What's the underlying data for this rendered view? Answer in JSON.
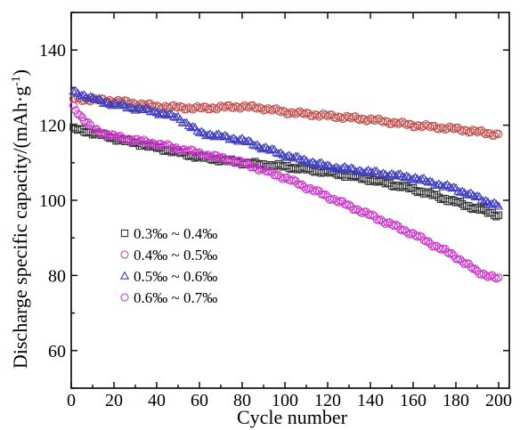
{
  "chart_data": {
    "type": "scatter",
    "title": "",
    "xlabel": "Cycle number",
    "ylabel_main": "Discharge specific capacity/(mAh·g",
    "ylabel_sup": "-1",
    "ylabel_close": ")",
    "xlim": [
      0,
      205
    ],
    "ylim": [
      50,
      150
    ],
    "xticks": [
      0,
      20,
      40,
      60,
      80,
      100,
      120,
      140,
      160,
      180,
      200
    ],
    "yticks": [
      60,
      80,
      100,
      120,
      140
    ],
    "grid": false,
    "legend_position": "left-middle",
    "series": [
      {
        "name": "0.3‰ ~ 0.4‰",
        "marker": "square",
        "color": "#333333",
        "anchors": [
          [
            1,
            119
          ],
          [
            10,
            118
          ],
          [
            20,
            116.5
          ],
          [
            40,
            114
          ],
          [
            60,
            111.5
          ],
          [
            80,
            110
          ],
          [
            100,
            109
          ],
          [
            120,
            107.5
          ],
          [
            140,
            105.5
          ],
          [
            160,
            103
          ],
          [
            180,
            99.5
          ],
          [
            200,
            96
          ]
        ]
      },
      {
        "name": "0.4‰ ~ 0.5‰",
        "marker": "circle",
        "color": "#c0504d",
        "anchors": [
          [
            1,
            127
          ],
          [
            20,
            126.5
          ],
          [
            40,
            125
          ],
          [
            60,
            124.5
          ],
          [
            80,
            125
          ],
          [
            90,
            124.5
          ],
          [
            100,
            123.5
          ],
          [
            120,
            122.5
          ],
          [
            140,
            121.5
          ],
          [
            160,
            120
          ],
          [
            180,
            119
          ],
          [
            200,
            117.5
          ]
        ]
      },
      {
        "name": "0.5‰ ~ 0.6‰",
        "marker": "triangle",
        "color": "#3d3dbd",
        "anchors": [
          [
            1,
            129
          ],
          [
            10,
            127
          ],
          [
            20,
            125.5
          ],
          [
            40,
            123.5
          ],
          [
            50,
            122
          ],
          [
            60,
            118
          ],
          [
            80,
            116
          ],
          [
            100,
            112
          ],
          [
            120,
            109
          ],
          [
            140,
            107.5
          ],
          [
            160,
            106
          ],
          [
            180,
            103
          ],
          [
            200,
            98.5
          ]
        ]
      },
      {
        "name": "0.6‰ ~ 0.7‰",
        "marker": "circle",
        "color": "#cc33cc",
        "anchors": [
          [
            1,
            125
          ],
          [
            5,
            122
          ],
          [
            10,
            119
          ],
          [
            20,
            117
          ],
          [
            40,
            115
          ],
          [
            60,
            112.5
          ],
          [
            80,
            110
          ],
          [
            100,
            106
          ],
          [
            120,
            101
          ],
          [
            140,
            96
          ],
          [
            160,
            91
          ],
          [
            180,
            85
          ],
          [
            190,
            81
          ],
          [
            200,
            79
          ]
        ]
      }
    ]
  }
}
